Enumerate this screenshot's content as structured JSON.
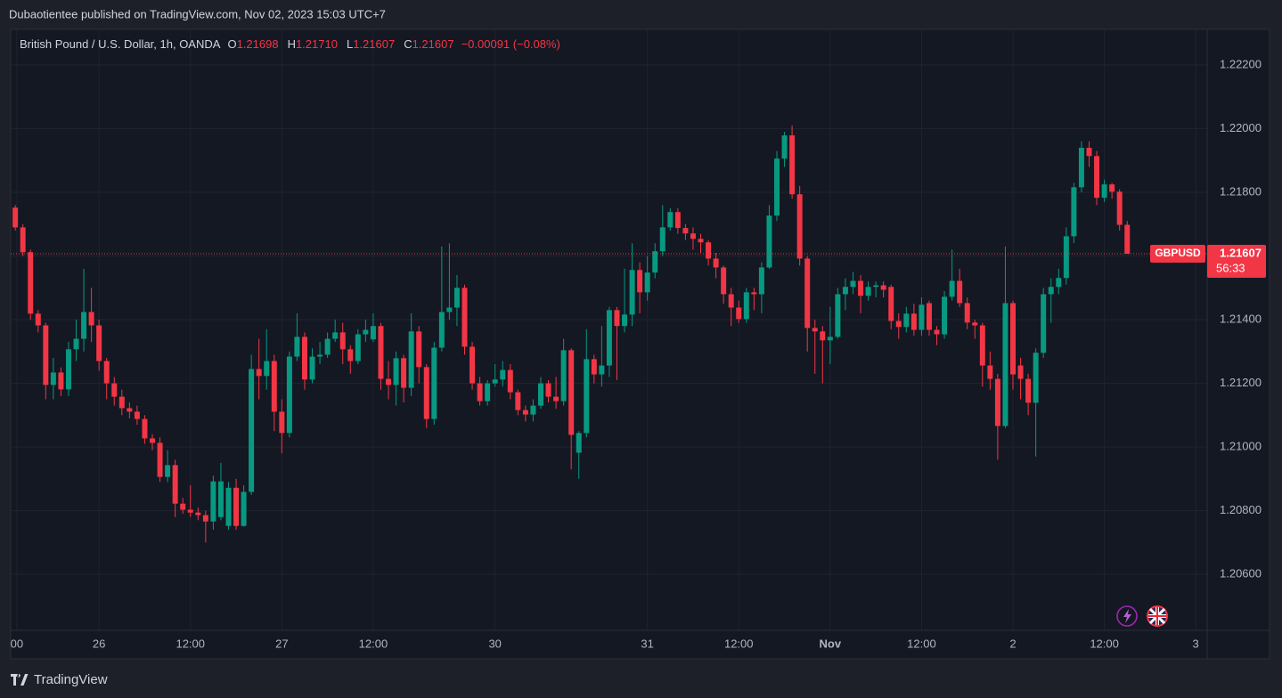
{
  "header": {
    "published": "Dubaotientee published on TradingView.com, Nov 02, 2023 15:03 UTC+7",
    "symbol": "British Pound / U.S. Dollar, 1h, OANDA",
    "readouts": [
      {
        "key": "O",
        "value": "1.21698"
      },
      {
        "key": "H",
        "value": "1.21710"
      },
      {
        "key": "L",
        "value": "1.21607"
      },
      {
        "key": "C",
        "value": "1.21607"
      }
    ],
    "change": "−0.00091 (−0.08%)"
  },
  "footer": {
    "brand": "TradingView"
  },
  "chart_data": {
    "type": "candlestick",
    "up_color": "#089981",
    "down_color": "#f23645",
    "grid": true,
    "x": [
      1,
      2,
      3,
      4,
      5,
      6,
      7,
      8,
      9,
      10,
      11,
      12,
      13,
      14,
      15,
      16,
      17,
      18,
      19,
      20,
      21,
      22,
      23,
      24,
      25,
      26,
      27,
      28,
      29,
      30,
      31,
      32,
      33,
      34,
      35,
      36,
      37,
      38,
      39,
      40,
      41,
      42,
      43,
      44,
      45,
      46,
      47,
      48,
      49,
      50,
      51,
      52,
      53,
      54,
      55,
      56,
      57,
      58,
      59,
      60,
      61,
      62,
      63,
      64,
      65,
      66,
      67,
      68,
      69,
      70,
      71,
      72,
      73,
      74,
      75,
      76,
      77,
      78,
      79,
      80,
      81,
      82,
      83,
      84,
      85,
      86,
      87,
      88,
      89,
      90,
      91,
      92,
      93,
      94,
      95,
      96,
      97,
      98,
      99,
      100,
      101,
      102,
      103,
      104,
      105,
      106,
      107,
      108,
      109,
      110,
      111,
      112,
      113,
      114,
      115,
      116,
      117,
      118,
      119,
      120,
      121,
      122,
      123,
      124,
      125,
      126,
      127,
      128,
      129,
      130,
      131,
      132,
      133,
      134,
      135,
      136,
      137,
      138,
      139,
      140,
      141,
      142,
      143,
      144,
      145,
      146,
      147
    ],
    "open": [
      1.21752,
      1.2169,
      1.21612,
      1.21419,
      1.21382,
      1.21195,
      1.21234,
      1.21181,
      1.21307,
      1.2134,
      1.21424,
      1.21382,
      1.2127,
      1.212,
      1.21158,
      1.21122,
      1.21111,
      1.21088,
      1.21027,
      1.21013,
      1.20906,
      1.20943,
      1.20822,
      1.20803,
      1.20794,
      1.20786,
      1.20766,
      1.2078,
      1.20752,
      1.20872,
      1.20752,
      1.20859,
      1.21245,
      1.21223,
      1.2127,
      1.21111,
      1.21044,
      1.21284,
      1.21346,
      1.21212,
      1.21284,
      1.2129,
      1.2134,
      1.2136,
      1.21307,
      1.2127,
      1.21354,
      1.21338,
      1.2138,
      1.21214,
      1.21195,
      1.21279,
      1.21186,
      1.21363,
      1.21251,
      1.21088,
      1.21312,
      1.21424,
      1.21438,
      1.215,
      1.21315,
      1.212,
      1.21144,
      1.212,
      1.21212,
      1.21242,
      1.21172,
      1.21116,
      1.21102,
      1.2113,
      1.212,
      1.21158,
      1.21144,
      1.21304,
      1.20982,
      1.21044,
      1.21276,
      1.21228,
      1.21256,
      1.2143,
      1.2138,
      1.21416,
      1.21556,
      1.21486,
      1.21548,
      1.21615,
      1.2169,
      1.21738,
      1.21688,
      1.21671,
      1.21654,
      1.21643,
      1.21592,
      1.21564,
      1.2148,
      1.21438,
      1.21402,
      1.21486,
      1.2148,
      1.21564,
      1.21727,
      1.21906,
      1.21979,
      1.21794,
      1.21592,
      1.21374,
      1.21363,
      1.21335,
      1.21346,
      1.2148,
      1.21503,
      1.21522,
      1.21475,
      1.21503,
      1.21508,
      1.21503,
      1.21396,
      1.21377,
      1.21419,
      1.21368,
      1.21452,
      1.21368,
      1.21354,
      1.21472,
      1.21522,
      1.21452,
      1.21391,
      1.21382,
      1.21256,
      1.21214,
      1.21066,
      1.21452,
      1.21256,
      1.21214,
      1.21139,
      1.21296,
      1.2148,
      1.21503,
      1.21531,
      1.21662,
      1.21816,
      1.2194,
      1.21914,
      1.21783,
      1.21825,
      1.21802,
      1.21698
    ],
    "high": [
      1.2176,
      1.217,
      1.2162,
      1.2143,
      1.2139,
      1.2128,
      1.2125,
      1.2133,
      1.214,
      1.2156,
      1.215,
      1.214,
      1.2128,
      1.2122,
      1.2118,
      1.2114,
      1.2113,
      1.211,
      1.2104,
      1.2103,
      1.2099,
      1.2096,
      1.2084,
      1.2088,
      1.2081,
      1.208,
      1.2091,
      1.2095,
      1.2089,
      1.209,
      1.2088,
      1.2129,
      1.2134,
      1.2137,
      1.2129,
      1.2115,
      1.213,
      1.2142,
      1.2136,
      1.2131,
      1.2133,
      1.2136,
      1.214,
      1.2139,
      1.2132,
      1.2137,
      1.214,
      1.2142,
      1.2139,
      1.2127,
      1.213,
      1.2129,
      1.2142,
      1.2138,
      1.2126,
      1.2133,
      1.2163,
      1.2164,
      1.2154,
      1.2151,
      1.2133,
      1.2122,
      1.2121,
      1.2126,
      1.2127,
      1.2126,
      1.2118,
      1.2113,
      1.2115,
      1.2122,
      1.2121,
      1.2122,
      1.2134,
      1.2131,
      1.2105,
      1.2137,
      1.2129,
      1.2138,
      1.2144,
      1.2144,
      1.2156,
      1.2164,
      1.2158,
      1.216,
      1.2164,
      1.2176,
      1.2175,
      1.2175,
      1.217,
      1.2169,
      1.2167,
      1.2165,
      1.2161,
      1.2157,
      1.215,
      1.2146,
      1.215,
      1.215,
      1.2158,
      1.2176,
      1.2193,
      1.2199,
      1.2201,
      1.2182,
      1.216,
      1.214,
      1.2138,
      1.2144,
      1.215,
      1.2153,
      1.2155,
      1.2154,
      1.2152,
      1.2152,
      1.2152,
      1.2151,
      1.2142,
      1.2144,
      1.2145,
      1.2147,
      1.2146,
      1.2138,
      1.2149,
      1.2162,
      1.2156,
      1.2147,
      1.214,
      1.2139,
      1.213,
      1.2123,
      1.2163,
      1.2146,
      1.2128,
      1.2123,
      1.2131,
      1.215,
      1.2153,
      1.2156,
      1.2169,
      1.2183,
      1.2196,
      1.2196,
      1.2193,
      1.2184,
      1.2183,
      1.2181,
      1.2171
    ],
    "low": [
      1.2168,
      1.216,
      1.214,
      1.2136,
      1.2115,
      1.2115,
      1.2116,
      1.2116,
      1.2127,
      1.213,
      1.2133,
      1.2124,
      1.2115,
      1.2113,
      1.211,
      1.2109,
      1.2107,
      1.2101,
      1.2099,
      1.2089,
      1.2089,
      1.2078,
      1.2079,
      1.2078,
      1.2077,
      1.207,
      1.2074,
      1.2077,
      1.2074,
      1.2074,
      1.2075,
      1.2085,
      1.2115,
      1.2118,
      1.2105,
      1.2098,
      1.2103,
      1.2127,
      1.2118,
      1.212,
      1.2126,
      1.2128,
      1.2133,
      1.2126,
      1.2123,
      1.2126,
      1.2133,
      1.2133,
      1.2118,
      1.2115,
      1.2113,
      1.2114,
      1.2116,
      1.212,
      1.2106,
      1.2107,
      1.213,
      1.214,
      1.2138,
      1.2129,
      1.2118,
      1.2113,
      1.2113,
      1.2119,
      1.2119,
      1.2115,
      1.211,
      1.2108,
      1.2108,
      1.2112,
      1.2114,
      1.2112,
      1.2113,
      1.2093,
      1.209,
      1.2103,
      1.212,
      1.2119,
      1.2122,
      1.2121,
      1.2136,
      1.2138,
      1.2142,
      1.2146,
      1.2153,
      1.216,
      1.2168,
      1.2167,
      1.2165,
      1.2162,
      1.2161,
      1.2157,
      1.2153,
      1.2145,
      1.2138,
      1.2139,
      1.2139,
      1.2143,
      1.2142,
      1.2156,
      1.2171,
      1.2188,
      1.2178,
      1.2157,
      1.213,
      1.2123,
      1.212,
      1.2126,
      1.2134,
      1.2143,
      1.2148,
      1.2142,
      1.2146,
      1.2147,
      1.2147,
      1.2137,
      1.2134,
      1.2136,
      1.2135,
      1.2135,
      1.2135,
      1.2132,
      1.2134,
      1.2146,
      1.2144,
      1.2137,
      1.2134,
      1.2119,
      1.2118,
      1.2096,
      1.2106,
      1.2118,
      1.2115,
      1.211,
      1.2097,
      1.2128,
      1.2139,
      1.2148,
      1.2151,
      1.2164,
      1.218,
      1.2188,
      1.2176,
      1.2177,
      1.2178,
      1.2168,
      1.21607
    ],
    "close": [
      1.2169,
      1.21612,
      1.21419,
      1.21382,
      1.21195,
      1.21234,
      1.21181,
      1.21307,
      1.2134,
      1.21424,
      1.21382,
      1.2127,
      1.212,
      1.21158,
      1.21122,
      1.21111,
      1.21088,
      1.21027,
      1.21013,
      1.20906,
      1.20943,
      1.20822,
      1.20803,
      1.20794,
      1.20786,
      1.20766,
      1.20892,
      1.20892,
      1.20872,
      1.20752,
      1.20859,
      1.21245,
      1.21223,
      1.2127,
      1.21111,
      1.21044,
      1.21284,
      1.21346,
      1.21212,
      1.21284,
      1.2129,
      1.2134,
      1.2136,
      1.21307,
      1.2127,
      1.21354,
      1.21368,
      1.2138,
      1.21214,
      1.21195,
      1.21279,
      1.21186,
      1.21363,
      1.21251,
      1.21088,
      1.21312,
      1.21424,
      1.21438,
      1.215,
      1.21315,
      1.212,
      1.21144,
      1.212,
      1.21212,
      1.21242,
      1.21172,
      1.21116,
      1.21102,
      1.2113,
      1.212,
      1.21158,
      1.21144,
      1.21304,
      1.21038,
      1.21044,
      1.21276,
      1.21228,
      1.21256,
      1.2143,
      1.2138,
      1.21416,
      1.21556,
      1.21486,
      1.21548,
      1.21615,
      1.2169,
      1.21738,
      1.21688,
      1.21671,
      1.21654,
      1.21643,
      1.21592,
      1.21564,
      1.2148,
      1.21438,
      1.21402,
      1.21486,
      1.2148,
      1.21564,
      1.21727,
      1.21906,
      1.21979,
      1.21794,
      1.21592,
      1.21374,
      1.21363,
      1.21335,
      1.21346,
      1.2148,
      1.21503,
      1.21522,
      1.21475,
      1.21503,
      1.21508,
      1.21494,
      1.21396,
      1.21377,
      1.21419,
      1.21368,
      1.21447,
      1.21368,
      1.21354,
      1.21472,
      1.21522,
      1.21452,
      1.21391,
      1.21382,
      1.21256,
      1.21214,
      1.21066,
      1.21452,
      1.21228,
      1.21214,
      1.21139,
      1.21296,
      1.2148,
      1.21503,
      1.21531,
      1.21662,
      1.21816,
      1.2194,
      1.21914,
      1.21783,
      1.21825,
      1.21802,
      1.21698,
      1.21607
    ],
    "xlim": [
      0.4,
      157.5
    ],
    "xticks": [
      {
        "value": 1.2,
        "label": "00"
      },
      {
        "value": 12,
        "label": "26"
      },
      {
        "value": 24,
        "label": "12:00"
      },
      {
        "value": 36,
        "label": "27"
      },
      {
        "value": 48,
        "label": "12:00"
      },
      {
        "value": 64,
        "label": "30"
      },
      {
        "value": 84,
        "label": "31"
      },
      {
        "value": 96,
        "label": "12:00"
      },
      {
        "value": 108,
        "label": "Nov"
      },
      {
        "value": 120,
        "label": "12:00"
      },
      {
        "value": 132,
        "label": "2"
      },
      {
        "value": 144,
        "label": "12:00"
      },
      {
        "value": 156,
        "label": "3"
      }
    ],
    "ylim": [
      1.20424,
      1.22312
    ],
    "yticks": [
      {
        "value": 1.206,
        "label": "1.20600"
      },
      {
        "value": 1.208,
        "label": "1.20800"
      },
      {
        "value": 1.21,
        "label": "1.21000"
      },
      {
        "value": 1.212,
        "label": "1.21200"
      },
      {
        "value": 1.214,
        "label": "1.21400"
      },
      {
        "value": 1.216,
        "label": "1.21600"
      },
      {
        "value": 1.218,
        "label": "1.21800"
      },
      {
        "value": 1.22,
        "label": "1.22000"
      },
      {
        "value": 1.222,
        "label": "1.22200"
      }
    ],
    "last_price": {
      "symbol": "GBPUSD",
      "price": 1.21607,
      "countdown": "56:33",
      "color": "#f23645"
    }
  }
}
